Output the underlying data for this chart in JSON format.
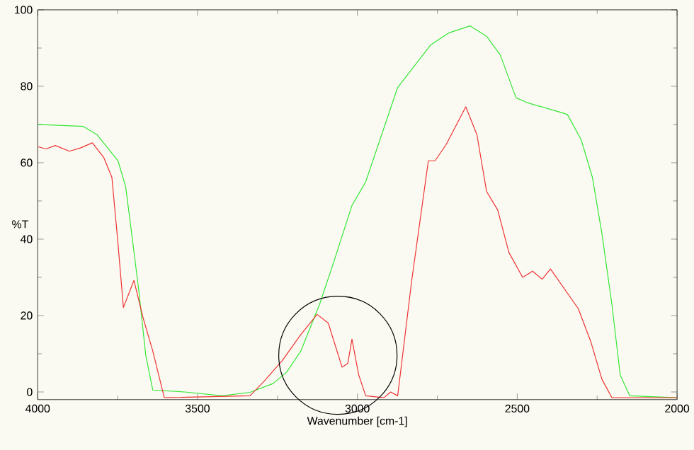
{
  "chart_data": {
    "type": "line",
    "xlabel": "Wavenumber [cm-1]",
    "ylabel": "%T",
    "xlim": [
      4000,
      2000
    ],
    "xticks": [
      4000,
      3500,
      3000,
      2500,
      2000
    ],
    "ylim": [
      -2,
      100
    ],
    "yticks": [
      0,
      20,
      40,
      60,
      80,
      100
    ],
    "series": [
      {
        "color": "#33e633",
        "x": [
          4000,
          3857,
          3814,
          3749,
          3725,
          3706,
          3684,
          3662,
          3640,
          3540,
          3423,
          3336,
          3264,
          3221,
          3177,
          3118,
          3074,
          3017,
          2974,
          2874,
          2771,
          2713,
          2648,
          2596,
          2553,
          2504,
          2465,
          2365,
          2343,
          2300,
          2265,
          2235,
          2204,
          2178,
          2148,
          2000
        ],
        "values": [
          70,
          69.5,
          67.3,
          60.5,
          53.8,
          41.4,
          26.7,
          9.6,
          0.5,
          0,
          -1,
          -0.1,
          2.2,
          5.2,
          10.7,
          23,
          34,
          48.8,
          55,
          79.7,
          90.8,
          94,
          95.8,
          93.1,
          88.2,
          77,
          75.6,
          73.2,
          72.6,
          66,
          56.2,
          41.4,
          23,
          4.5,
          -1,
          -1.5
        ]
      },
      {
        "color": "#f03030",
        "x": [
          4000,
          3974,
          3945,
          3901,
          3865,
          3829,
          3793,
          3768,
          3749,
          3732,
          3699,
          3670,
          3640,
          3604,
          3336,
          3293,
          3235,
          3177,
          3126,
          3091,
          3048,
          3030,
          3017,
          2996,
          2974,
          2917,
          2896,
          2874,
          2830,
          2778,
          2757,
          2722,
          2661,
          2626,
          2596,
          2561,
          2526,
          2483,
          2452,
          2422,
          2396,
          2309,
          2270,
          2235,
          2204,
          2000
        ],
        "values": [
          64.2,
          63.6,
          64.5,
          63,
          63.9,
          65.2,
          61.3,
          56.2,
          39,
          22.1,
          29.2,
          19.3,
          10.7,
          -1.5,
          -1,
          2.7,
          8.2,
          15,
          20.3,
          18,
          6.5,
          7.5,
          13.8,
          4.5,
          -1,
          -1.5,
          0,
          -1,
          29.2,
          60.5,
          60.5,
          64.8,
          74.6,
          67.3,
          52.5,
          47.6,
          36.5,
          30,
          31.6,
          29.5,
          32.2,
          21.8,
          13.2,
          3.3,
          -1.5,
          -1.5
        ]
      }
    ]
  }
}
